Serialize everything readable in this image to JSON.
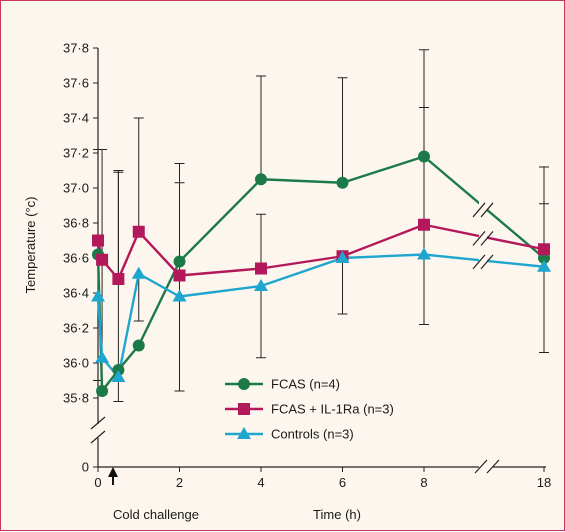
{
  "chart_data": {
    "type": "line",
    "xlabel": "Time (h)",
    "ylabel": "Temperature (°c)",
    "annotation": "Cold challenge",
    "x_ticks": [
      "0",
      "2",
      "4",
      "6",
      "8",
      "18"
    ],
    "y_ticks": [
      "35·8",
      "36·0",
      "36·2",
      "36·4",
      "36·6",
      "36·8",
      "37·0",
      "37·2",
      "37·4",
      "37·6",
      "37·8"
    ],
    "y_zero_label": "0",
    "ylim": [
      35.8,
      37.8
    ],
    "x_axis_break_between": [
      8,
      18
    ],
    "y_axis_break": true,
    "grid": false,
    "legend_position": "bottom-center",
    "series": [
      {
        "name": "FCAS (n=4)",
        "color": "#1c7a48",
        "marker": "circle",
        "x": [
          0,
          0.1,
          0.5,
          1,
          2,
          4,
          6,
          8,
          18
        ],
        "y": [
          36.62,
          35.84,
          35.96,
          36.1,
          36.58,
          37.05,
          37.03,
          37.18,
          36.6
        ],
        "err_low": [
          35.9,
          35.82,
          35.78,
          null,
          35.84,
          null,
          null,
          36.22,
          null
        ],
        "err_high": [
          37.22,
          37.22,
          37.1,
          null,
          37.14,
          37.64,
          37.63,
          37.79,
          37.12
        ]
      },
      {
        "name": "FCAS + IL-1Ra (n=3)",
        "color": "#b3195a",
        "marker": "square",
        "x": [
          0,
          0.1,
          0.5,
          1,
          2,
          4,
          6,
          8,
          18
        ],
        "y": [
          36.7,
          36.59,
          36.48,
          36.75,
          36.5,
          36.54,
          36.61,
          36.79,
          36.65
        ],
        "err_low": [
          null,
          null,
          null,
          null,
          null,
          null,
          null,
          null,
          null
        ],
        "err_high": [
          null,
          null,
          37.09,
          37.4,
          37.03,
          36.85,
          null,
          37.46,
          36.91
        ]
      },
      {
        "name": "Controls (n=3)",
        "color": "#1fa6cf",
        "marker": "triangle",
        "x": [
          0,
          0.1,
          0.5,
          1,
          2,
          4,
          6,
          8,
          18
        ],
        "y": [
          36.38,
          36.03,
          35.92,
          36.51,
          36.38,
          36.44,
          36.6,
          36.62,
          36.55
        ],
        "err_low": [
          null,
          null,
          null,
          36.24,
          null,
          36.03,
          36.28,
          null,
          36.06
        ],
        "err_high": [
          null,
          null,
          null,
          null,
          null,
          null,
          null,
          null,
          null
        ]
      }
    ]
  }
}
